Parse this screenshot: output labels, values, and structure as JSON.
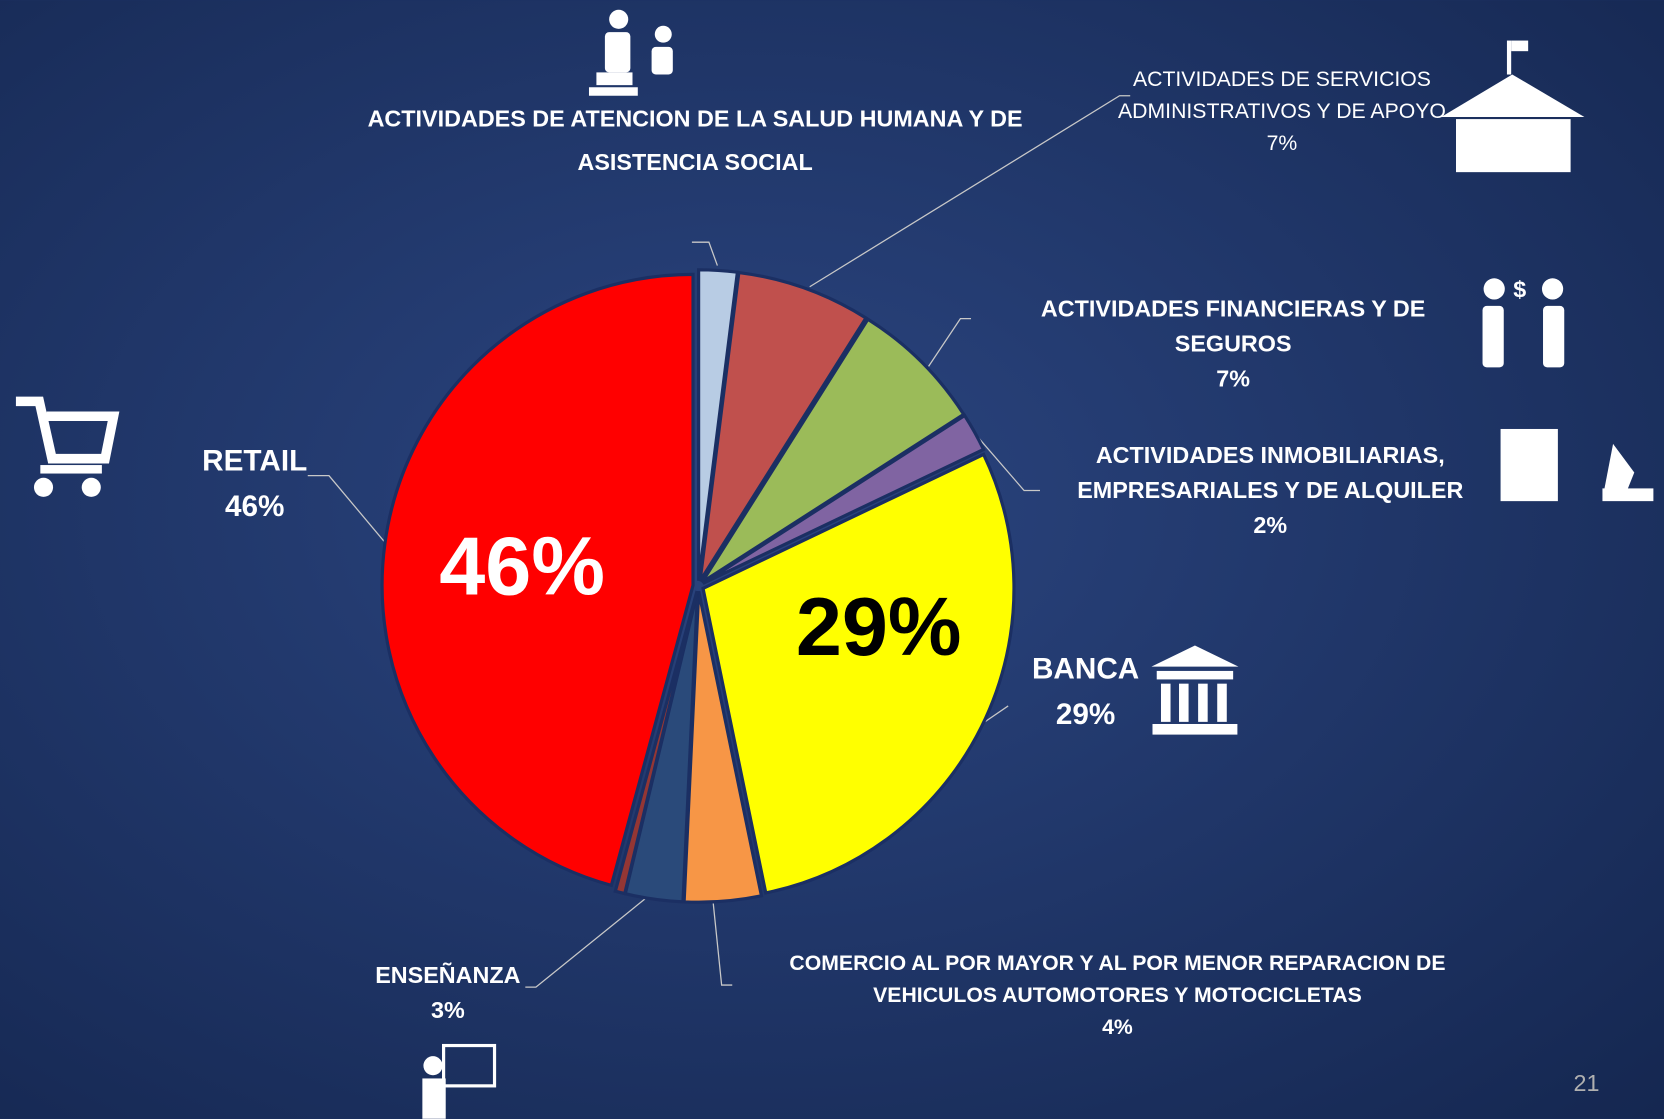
{
  "chart_data": {
    "type": "pie",
    "categories": [
      "ACTIVIDADES DE ATENCION DE LA SALUD HUMANA Y DE ASISTENCIA SOCIAL",
      "ACTIVIDADES DE SERVICIOS ADMINISTRATIVOS Y DE APOYO",
      "ACTIVIDADES FINANCIERAS Y DE SEGUROS",
      "ACTIVIDADES INMOBILIARIAS, EMPRESARIALES Y DE ALQUILER",
      "BANCA",
      "COMERCIO AL POR MAYOR Y AL POR MENOR REPARACION DE VEHICULOS AUTOMOTORES Y MOTOCICLETAS",
      "ENSEÑANZA",
      null,
      "RETAIL"
    ],
    "values": [
      2,
      7,
      7,
      2,
      29,
      4,
      3,
      0.5,
      46
    ],
    "value_labels": [
      null,
      "7%",
      "7%",
      "2%",
      "29%",
      "4%",
      "3%",
      null,
      "46%"
    ],
    "colors": [
      "#b8cce4",
      "#c0504d",
      "#9bbb59",
      "#8064a2",
      "#ffff00",
      "#f79646",
      "#2a4a7a",
      "#943634",
      "#ff0000"
    ]
  },
  "page_number": "21"
}
